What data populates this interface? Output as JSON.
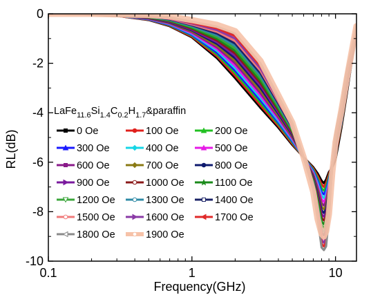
{
  "chart_data": {
    "type": "line",
    "title": "",
    "xlabel": "Frequency(GHz)",
    "ylabel": "RL(dB)",
    "xscale": "log",
    "xlim": [
      0.1,
      14
    ],
    "ylim": [
      -10,
      0
    ],
    "xticks": [
      "0.1",
      "1",
      "10"
    ],
    "yticks": [
      "0",
      "-2",
      "-4",
      "-6",
      "-8",
      "-10"
    ],
    "grid": false,
    "legend_placement": "center-left",
    "legend_title": {
      "base": "LaFe",
      "s1": "11.6",
      "el2": "Si",
      "s2": "1.4",
      "el3": "C",
      "s3": "0.2",
      "el4": "H",
      "s4": "1.7",
      "suffix": "&paraffin"
    },
    "x": [
      0.1,
      0.2,
      0.3,
      0.5,
      0.7,
      1.0,
      1.5,
      2.0,
      3.0,
      4.0,
      5.0,
      6.0,
      7.0,
      7.5,
      8.0,
      8.3,
      8.6,
      9.0,
      9.5,
      10.0,
      11.0,
      12.0,
      13.0,
      14.0
    ],
    "series": [
      {
        "name": "0 Oe",
        "color": "#000000",
        "marker": "square",
        "values": [
          0,
          -0.03,
          -0.08,
          -0.25,
          -0.5,
          -0.95,
          -1.8,
          -2.6,
          -3.8,
          -4.6,
          -5.3,
          -5.8,
          -6.2,
          -6.45,
          -6.75,
          -6.85,
          -6.7,
          -6.4,
          -6.2,
          -5.9,
          -4.6,
          -3.2,
          -1.9,
          -0.8
        ]
      },
      {
        "name": "100 Oe",
        "color": "#e0201c",
        "marker": "circle",
        "values": [
          0,
          -0.03,
          -0.08,
          -0.24,
          -0.48,
          -0.92,
          -1.72,
          -2.5,
          -3.7,
          -4.53,
          -5.25,
          -5.8,
          -6.25,
          -6.55,
          -6.9,
          -7.0,
          -6.85,
          -6.5,
          -6.1,
          -5.7,
          -4.5,
          -3.1,
          -1.85,
          -0.78
        ]
      },
      {
        "name": "200 Oe",
        "color": "#22c022",
        "marker": "triangle",
        "values": [
          0,
          -0.03,
          -0.07,
          -0.23,
          -0.46,
          -0.88,
          -1.65,
          -2.4,
          -3.6,
          -4.46,
          -5.2,
          -5.8,
          -6.3,
          -6.65,
          -7.05,
          -7.15,
          -7.0,
          -6.6,
          -6.1,
          -5.6,
          -4.45,
          -3.05,
          -1.8,
          -0.76
        ]
      },
      {
        "name": "300 Oe",
        "color": "#1a1aff",
        "marker": "triangle",
        "values": [
          0,
          -0.02,
          -0.07,
          -0.22,
          -0.44,
          -0.85,
          -1.58,
          -2.3,
          -3.5,
          -4.39,
          -5.15,
          -5.8,
          -6.35,
          -6.75,
          -7.2,
          -7.3,
          -7.15,
          -6.7,
          -6.1,
          -5.55,
          -4.4,
          -3.0,
          -1.78,
          -0.74
        ]
      },
      {
        "name": "400 Oe",
        "color": "#16d6e6",
        "marker": "diamond",
        "values": [
          0,
          -0.02,
          -0.07,
          -0.21,
          -0.42,
          -0.81,
          -1.5,
          -2.2,
          -3.4,
          -4.32,
          -5.1,
          -5.8,
          -6.4,
          -6.85,
          -7.35,
          -7.45,
          -7.3,
          -6.8,
          -6.1,
          -5.5,
          -4.35,
          -2.95,
          -1.75,
          -0.72
        ]
      },
      {
        "name": "500 Oe",
        "color": "#e61ae6",
        "marker": "triangle",
        "values": [
          0,
          -0.02,
          -0.06,
          -0.2,
          -0.4,
          -0.78,
          -1.43,
          -2.1,
          -3.3,
          -4.25,
          -5.05,
          -5.8,
          -6.45,
          -6.95,
          -7.5,
          -7.6,
          -7.45,
          -6.9,
          -6.1,
          -5.45,
          -4.3,
          -2.9,
          -1.72,
          -0.7
        ]
      },
      {
        "name": "600 Oe",
        "color": "#8a1a8a",
        "marker": "square",
        "values": [
          0,
          -0.02,
          -0.06,
          -0.19,
          -0.38,
          -0.74,
          -1.36,
          -2.0,
          -3.2,
          -4.18,
          -5.0,
          -5.8,
          -6.5,
          -7.05,
          -7.65,
          -7.75,
          -7.6,
          -7.0,
          -6.1,
          -5.4,
          -4.25,
          -2.85,
          -1.7,
          -0.68
        ]
      },
      {
        "name": "700 Oe",
        "color": "#8a7a14",
        "marker": "diamond",
        "values": [
          0,
          -0.02,
          -0.06,
          -0.18,
          -0.36,
          -0.71,
          -1.29,
          -1.9,
          -3.1,
          -4.11,
          -4.95,
          -5.8,
          -6.55,
          -7.15,
          -7.8,
          -7.9,
          -7.75,
          -7.1,
          -6.1,
          -5.35,
          -4.2,
          -2.8,
          -1.68,
          -0.66
        ]
      },
      {
        "name": "800 Oe",
        "color": "#0e1a6e",
        "marker": "circle",
        "values": [
          0,
          -0.02,
          -0.05,
          -0.17,
          -0.34,
          -0.67,
          -1.22,
          -1.8,
          -3.0,
          -4.04,
          -4.9,
          -5.8,
          -6.6,
          -7.25,
          -7.95,
          -8.05,
          -7.9,
          -7.2,
          -6.1,
          -5.3,
          -4.15,
          -2.75,
          -1.65,
          -0.64
        ]
      },
      {
        "name": "900 Oe",
        "color": "#7a1a9e",
        "marker": "tri-right",
        "values": [
          0,
          -0.02,
          -0.05,
          -0.16,
          -0.32,
          -0.64,
          -1.15,
          -1.7,
          -2.9,
          -3.97,
          -4.85,
          -5.8,
          -6.65,
          -7.35,
          -8.1,
          -8.2,
          -8.05,
          -7.3,
          -6.1,
          -5.25,
          -4.1,
          -2.7,
          -1.62,
          -0.62
        ]
      },
      {
        "name": "1000 Oe",
        "color": "#8a1818",
        "marker": "circle-open",
        "values": [
          0,
          -0.01,
          -0.05,
          -0.15,
          -0.3,
          -0.6,
          -1.08,
          -1.6,
          -2.8,
          -3.9,
          -4.8,
          -5.8,
          -6.7,
          -7.45,
          -8.25,
          -8.35,
          -8.2,
          -7.4,
          -6.1,
          -5.2,
          -4.05,
          -2.65,
          -1.6,
          -0.6
        ]
      },
      {
        "name": "1100 Oe",
        "color": "#1a8a1a",
        "marker": "star",
        "values": [
          0,
          -0.01,
          -0.05,
          -0.14,
          -0.28,
          -0.57,
          -1.01,
          -1.5,
          -2.7,
          -3.83,
          -4.75,
          -5.8,
          -6.75,
          -7.55,
          -8.4,
          -8.5,
          -8.35,
          -7.5,
          -6.1,
          -5.15,
          -4.0,
          -2.6,
          -1.58,
          -0.58
        ]
      },
      {
        "name": "1200 Oe",
        "color": "#3aa63a",
        "marker": "tri-down-open",
        "values": [
          0,
          -0.01,
          -0.04,
          -0.13,
          -0.26,
          -0.53,
          -0.94,
          -1.4,
          -2.6,
          -3.76,
          -4.7,
          -5.8,
          -6.8,
          -7.65,
          -8.55,
          -8.65,
          -8.5,
          -7.6,
          -6.1,
          -5.1,
          -3.95,
          -2.55,
          -1.55,
          -0.56
        ]
      },
      {
        "name": "1300 Oe",
        "color": "#2e8aa6",
        "marker": "circle-open",
        "values": [
          0,
          -0.01,
          -0.04,
          -0.12,
          -0.24,
          -0.5,
          -0.87,
          -1.3,
          -2.5,
          -3.69,
          -4.65,
          -5.8,
          -6.85,
          -7.75,
          -8.7,
          -8.8,
          -8.65,
          -7.7,
          -6.1,
          -5.05,
          -3.9,
          -2.5,
          -1.52,
          -0.54
        ]
      },
      {
        "name": "1400 Oe",
        "color": "#1a2266",
        "marker": "square-open",
        "values": [
          0,
          -0.01,
          -0.04,
          -0.11,
          -0.22,
          -0.46,
          -0.8,
          -1.2,
          -2.4,
          -3.62,
          -4.6,
          -5.8,
          -6.9,
          -7.85,
          -8.85,
          -8.95,
          -8.8,
          -7.8,
          -6.1,
          -5.0,
          -3.85,
          -2.45,
          -1.5,
          -0.52
        ]
      },
      {
        "name": "1500 Oe",
        "color": "#f07a7a",
        "marker": "circle-open",
        "values": [
          0,
          -0.01,
          -0.04,
          -0.1,
          -0.2,
          -0.43,
          -0.73,
          -1.1,
          -2.3,
          -3.55,
          -4.55,
          -5.8,
          -6.95,
          -7.95,
          -9.0,
          -9.1,
          -8.95,
          -7.9,
          -6.1,
          -4.95,
          -3.8,
          -2.4,
          -1.48,
          -0.5
        ]
      },
      {
        "name": "1600 Oe",
        "color": "#8a3aa6",
        "marker": "tri-right",
        "values": [
          0,
          -0.01,
          -0.03,
          -0.09,
          -0.18,
          -0.39,
          -0.66,
          -1.0,
          -2.2,
          -3.48,
          -4.5,
          -5.8,
          -7.0,
          -8.05,
          -9.15,
          -9.25,
          -9.1,
          -8.0,
          -6.1,
          -4.9,
          -3.75,
          -2.35,
          -1.45,
          -0.48
        ]
      },
      {
        "name": "1700 Oe",
        "color": "#e02a2a",
        "marker": "tri-left",
        "values": [
          0,
          -0.01,
          -0.03,
          -0.08,
          -0.16,
          -0.36,
          -0.59,
          -0.9,
          -2.1,
          -3.41,
          -4.45,
          -5.8,
          -7.05,
          -8.15,
          -9.3,
          -9.4,
          -9.25,
          -8.1,
          -6.1,
          -4.85,
          -3.7,
          -2.3,
          -1.42,
          -0.46
        ]
      },
      {
        "name": "1800 Oe",
        "color": "#8a8a8a",
        "marker": "tri-left-open",
        "values": [
          0,
          -0.01,
          -0.03,
          -0.07,
          -0.14,
          -0.32,
          -0.52,
          -0.8,
          -2.0,
          -3.34,
          -4.4,
          -5.8,
          -7.1,
          -8.25,
          -9.45,
          -9.55,
          -9.4,
          -8.2,
          -6.1,
          -4.8,
          -3.65,
          -2.25,
          -1.4,
          -0.44
        ]
      },
      {
        "name": "1900 Oe",
        "color": "#f6c2a8",
        "marker": "circle-open",
        "values": [
          0,
          0,
          -0.02,
          -0.05,
          -0.1,
          -0.25,
          -0.45,
          -0.7,
          -1.9,
          -3.3,
          -4.4,
          -5.8,
          -7.2,
          -8.3,
          -8.9,
          -9.0,
          -8.8,
          -8.1,
          -6.4,
          -5.2,
          -3.9,
          -2.6,
          -1.5,
          -0.5
        ]
      }
    ]
  }
}
